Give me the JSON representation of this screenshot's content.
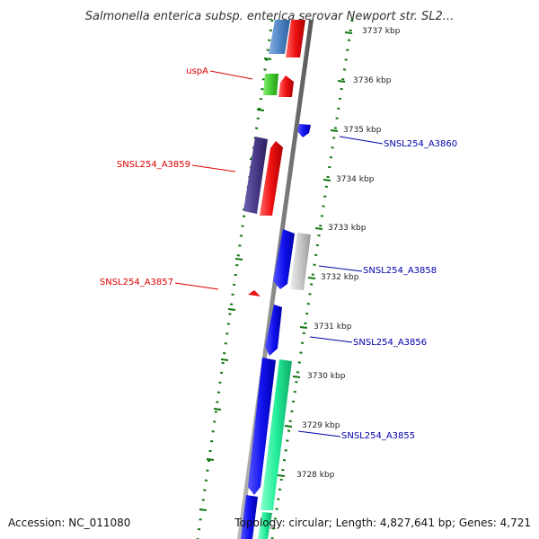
{
  "title": "Salmonella enterica subsp. enterica serovar Newport str. SL2...",
  "accession": "Accession: NC_011080",
  "topology": "Topology: circular; Length: 4,827,641 bp; Genes: 4,721",
  "scale_labels": [
    "3737 kbp",
    "3736 kbp",
    "3735 kbp",
    "3734 kbp",
    "3733 kbp",
    "3732 kbp",
    "3731 kbp",
    "3730 kbp",
    "3729 kbp",
    "3728 kbp"
  ],
  "gene_labels": {
    "uspA": "uspA",
    "a3859": "SNSL254_A3859",
    "a3857": "SNSL254_A3857",
    "a3860": "SNSL254_A3860",
    "a3858": "SNSL254_A3858",
    "a3856": "SNSL254_A3856",
    "a3855": "SNSL254_A3855"
  },
  "colors": {
    "forward_label": "#dd0000",
    "reverse_label": "#0000aa",
    "backbone": "#888888",
    "tick_dots": "#117711",
    "red_gene": "#ee1111",
    "blue_gene": "#1111ee",
    "navy_gene": "#4a3a8a",
    "green_gene": "#44cc33",
    "steelblue_gene": "#4f86c6",
    "grey_gene": "#c8c8c8",
    "teal_gene": "#22ee99"
  }
}
